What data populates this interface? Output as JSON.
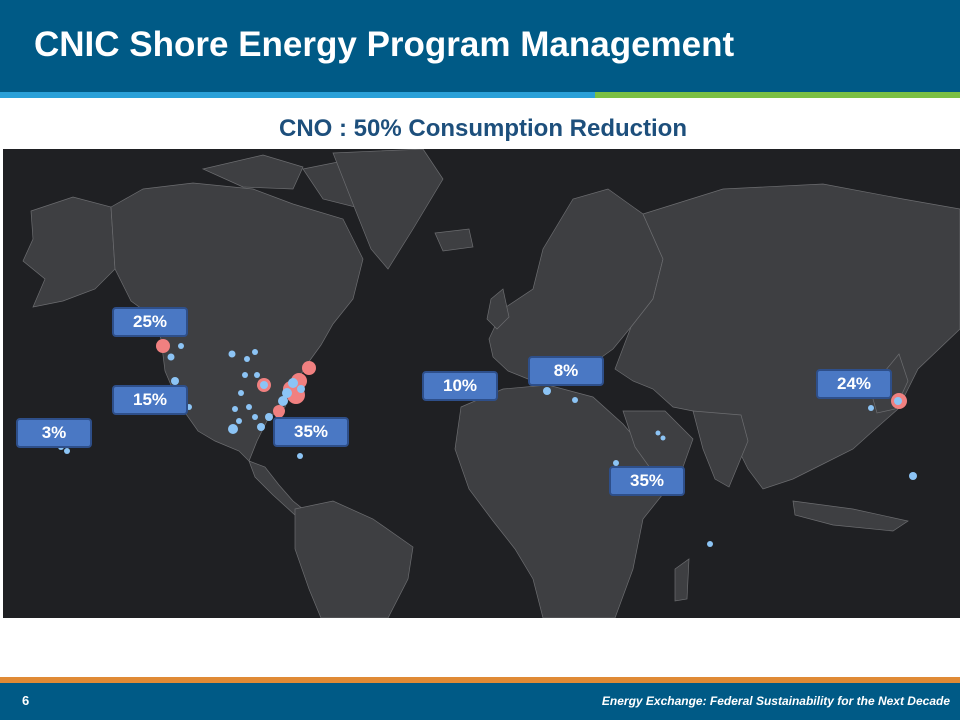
{
  "header": {
    "title": "CNIC Shore Energy Program Management"
  },
  "subtitle": "CNO : 50% Consumption Reduction",
  "colors": {
    "header_bg": "#005a86",
    "accent_blue": "#2aa0d8",
    "accent_green": "#7bbf44",
    "accent_orange": "#e08a35",
    "map_bg": "#1f2023",
    "land": "#3e3f42",
    "site_blue": "#8cc4f5",
    "site_red": "#f08080",
    "callout_bg": "#4a78c4"
  },
  "callouts": {
    "northwest": "25%",
    "southwest": "15%",
    "hawaii": "3%",
    "southeast": "35%",
    "europe_west": "10%",
    "europe_med": "8%",
    "middle_east": "35%",
    "japan": "24%"
  },
  "footer": {
    "page_number": "6",
    "text": "Energy Exchange: Federal Sustainability for the Next Decade"
  }
}
